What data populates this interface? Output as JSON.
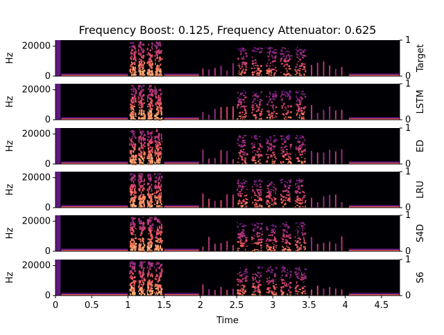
{
  "chart_data": {
    "type": "heatmap",
    "title": "Frequency Boost: 0.125, Frequency Attenuator: 0.625",
    "xlabel": "Time",
    "ylabel": "Hz",
    "xlim": [
      0,
      4.75
    ],
    "ylim": [
      0,
      24000
    ],
    "right_ylim": [
      0,
      1
    ],
    "x_ticks": [
      "0",
      "0.5",
      "1",
      "1.5",
      "2",
      "2.5",
      "3",
      "3.5",
      "4",
      "4.5"
    ],
    "x_tick_values": [
      0,
      0.5,
      1,
      1.5,
      2,
      2.5,
      3,
      3.5,
      4,
      4.5
    ],
    "y_ticks": [
      "0",
      "20000"
    ],
    "y_tick_values": [
      0,
      20000
    ],
    "right_ticks": [
      "0",
      "1"
    ],
    "colormap": "magma",
    "panels": [
      {
        "label": "Target"
      },
      {
        "label": "LSTM"
      },
      {
        "label": "ED"
      },
      {
        "label": "LRU"
      },
      {
        "label": "S4D"
      },
      {
        "label": "S6"
      }
    ],
    "events": [
      {
        "t0": 0.0,
        "t1": 0.07,
        "kind": "click"
      },
      {
        "t0": 0.08,
        "t1": 1.0,
        "kind": "low-tone"
      },
      {
        "t0": 1.02,
        "t1": 1.1,
        "kind": "burst"
      },
      {
        "t0": 1.14,
        "t1": 1.22,
        "kind": "burst"
      },
      {
        "t0": 1.26,
        "t1": 1.33,
        "kind": "burst"
      },
      {
        "t0": 1.36,
        "t1": 1.46,
        "kind": "burst"
      },
      {
        "t0": 1.5,
        "t1": 1.98,
        "kind": "low-tone"
      },
      {
        "t0": 2.0,
        "t1": 2.5,
        "kind": "ticks"
      },
      {
        "t0": 2.5,
        "t1": 2.63,
        "kind": "broadband"
      },
      {
        "t0": 2.7,
        "t1": 2.84,
        "kind": "broadband"
      },
      {
        "t0": 2.9,
        "t1": 3.04,
        "kind": "broadband"
      },
      {
        "t0": 3.1,
        "t1": 3.24,
        "kind": "broadband"
      },
      {
        "t0": 3.3,
        "t1": 3.44,
        "kind": "broadband"
      },
      {
        "t0": 3.5,
        "t1": 4.0,
        "kind": "ticks"
      },
      {
        "t0": 4.05,
        "t1": 4.75,
        "kind": "low-tone"
      }
    ]
  }
}
